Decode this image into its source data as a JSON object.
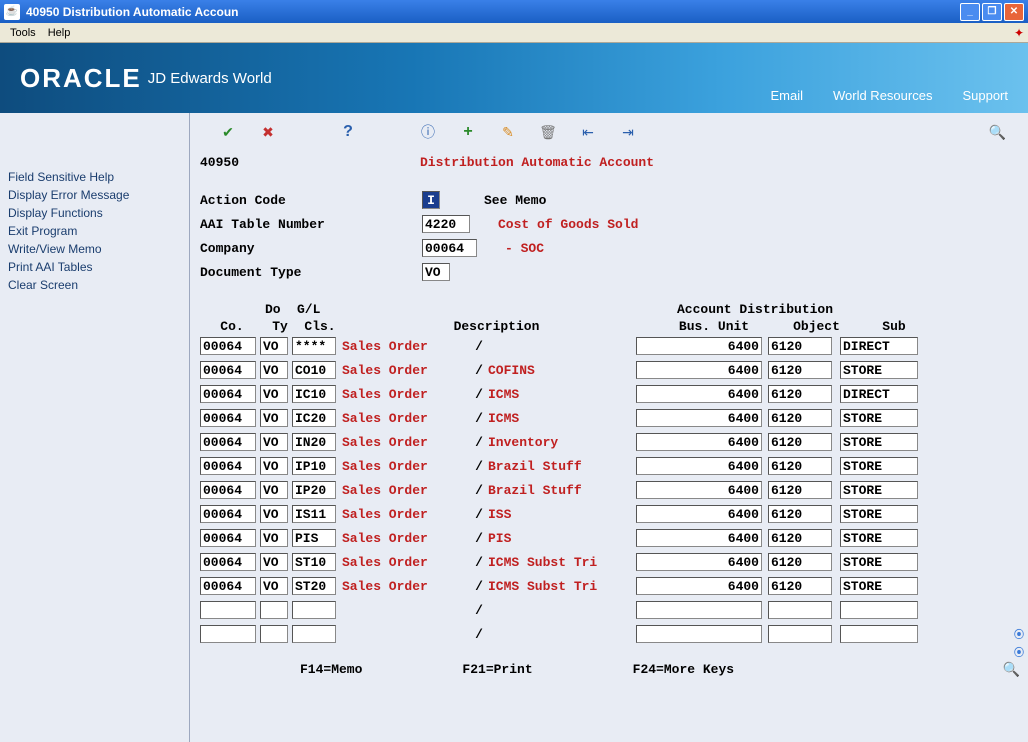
{
  "window": {
    "title": "40950   Distribution Automatic Accoun"
  },
  "menubar": {
    "tools": "Tools",
    "help": "Help"
  },
  "banner": {
    "logo": "ORACLE",
    "product": "JD Edwards World",
    "links": {
      "email": "Email",
      "resources": "World Resources",
      "support": "Support"
    }
  },
  "sidebar": {
    "items": [
      "Field Sensitive Help",
      "Display Error Message",
      "Display Functions",
      "Exit Program",
      "Write/View Memo",
      "Print AAI Tables",
      "Clear Screen"
    ]
  },
  "form": {
    "screen_code": "40950",
    "screen_title": "Distribution Automatic Account",
    "action_code_label": "Action Code",
    "action_code_value": "I",
    "see_memo": "See Memo",
    "aai_label": "AAI Table Number",
    "aai_value": "4220",
    "aai_desc": "Cost of Goods Sold",
    "company_label": "Company",
    "company_value": "00064",
    "company_desc": "- SOC",
    "doctype_label": "Document Type",
    "doctype_value": "VO"
  },
  "table": {
    "header_top": {
      "do": "Do",
      "gl": "G/L",
      "acct_dist": "Account Distribution"
    },
    "headers": {
      "co": "Co.",
      "ty": "Ty",
      "cls": "Cls.",
      "desc": "Description",
      "bus": "Bus. Unit",
      "obj": "Object",
      "sub": "Sub"
    },
    "rows": [
      {
        "co": "00064",
        "ty": "VO",
        "cls": "****",
        "desc1": "Sales Order",
        "desc2": "",
        "bus": "6400",
        "obj": "6120",
        "sub": "DIRECT"
      },
      {
        "co": "00064",
        "ty": "VO",
        "cls": "CO10",
        "desc1": "Sales Order",
        "desc2": "COFINS",
        "bus": "6400",
        "obj": "6120",
        "sub": "STORE"
      },
      {
        "co": "00064",
        "ty": "VO",
        "cls": "IC10",
        "desc1": "Sales Order",
        "desc2": "ICMS",
        "bus": "6400",
        "obj": "6120",
        "sub": "DIRECT"
      },
      {
        "co": "00064",
        "ty": "VO",
        "cls": "IC20",
        "desc1": "Sales Order",
        "desc2": "ICMS",
        "bus": "6400",
        "obj": "6120",
        "sub": "STORE"
      },
      {
        "co": "00064",
        "ty": "VO",
        "cls": "IN20",
        "desc1": "Sales Order",
        "desc2": "Inventory",
        "bus": "6400",
        "obj": "6120",
        "sub": "STORE"
      },
      {
        "co": "00064",
        "ty": "VO",
        "cls": "IP10",
        "desc1": "Sales Order",
        "desc2": "Brazil Stuff",
        "bus": "6400",
        "obj": "6120",
        "sub": "STORE"
      },
      {
        "co": "00064",
        "ty": "VO",
        "cls": "IP20",
        "desc1": "Sales Order",
        "desc2": "Brazil Stuff",
        "bus": "6400",
        "obj": "6120",
        "sub": "STORE"
      },
      {
        "co": "00064",
        "ty": "VO",
        "cls": "IS11",
        "desc1": "Sales Order",
        "desc2": "ISS",
        "bus": "6400",
        "obj": "6120",
        "sub": "STORE"
      },
      {
        "co": "00064",
        "ty": "VO",
        "cls": "PIS",
        "desc1": "Sales Order",
        "desc2": "PIS",
        "bus": "6400",
        "obj": "6120",
        "sub": "STORE"
      },
      {
        "co": "00064",
        "ty": "VO",
        "cls": "ST10",
        "desc1": "Sales Order",
        "desc2": "ICMS Subst Tri",
        "bus": "6400",
        "obj": "6120",
        "sub": "STORE"
      },
      {
        "co": "00064",
        "ty": "VO",
        "cls": "ST20",
        "desc1": "Sales Order",
        "desc2": "ICMS Subst Tri",
        "bus": "6400",
        "obj": "6120",
        "sub": "STORE"
      },
      {
        "co": "",
        "ty": "",
        "cls": "",
        "desc1": "",
        "desc2": "",
        "bus": "",
        "obj": "",
        "sub": ""
      },
      {
        "co": "",
        "ty": "",
        "cls": "",
        "desc1": "",
        "desc2": "",
        "bus": "",
        "obj": "",
        "sub": ""
      }
    ]
  },
  "footer": {
    "f14": "F14=Memo",
    "f21": "F21=Print",
    "f24": "F24=More Keys"
  },
  "colors": {
    "banner_bg": "#1876b5",
    "red_text": "#c02020",
    "sidebar_bg": "#e8ecf4"
  }
}
